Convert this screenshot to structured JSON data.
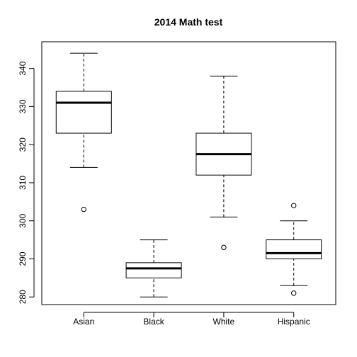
{
  "chart_data": {
    "type": "boxplot",
    "title": "2014 Math test",
    "xlabel": "",
    "ylabel": "",
    "categories": [
      "Asian",
      "Black",
      "White",
      "Hispanic"
    ],
    "ylim": [
      278,
      347
    ],
    "yticks": [
      280,
      290,
      300,
      310,
      320,
      330,
      340
    ],
    "grid": false,
    "legend": "none",
    "boxes": [
      {
        "category": "Asian",
        "whisker_low": 314,
        "q1": 323,
        "median": 331,
        "q3": 334,
        "whisker_high": 344,
        "outliers": [
          303
        ]
      },
      {
        "category": "Black",
        "whisker_low": 280,
        "q1": 285,
        "median": 287.5,
        "q3": 289,
        "whisker_high": 295,
        "outliers": []
      },
      {
        "category": "White",
        "whisker_low": 301,
        "q1": 312,
        "median": 317.5,
        "q3": 323,
        "whisker_high": 338,
        "outliers": [
          293
        ]
      },
      {
        "category": "Hispanic",
        "whisker_low": 283,
        "q1": 290,
        "median": 291.5,
        "q3": 295,
        "whisker_high": 300,
        "outliers": [
          281,
          304
        ]
      }
    ]
  }
}
